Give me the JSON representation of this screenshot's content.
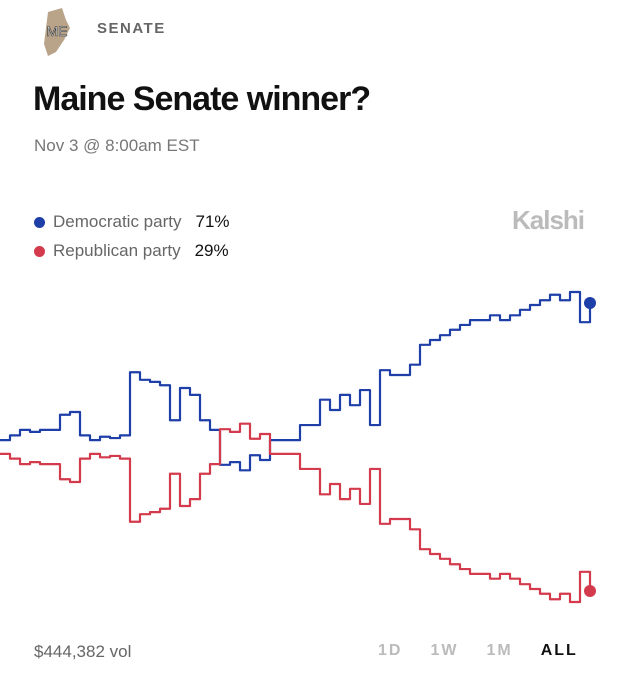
{
  "header": {
    "state_badge": "ME",
    "category": "SENATE",
    "title": "Maine Senate winner?",
    "subtitle": "Nov 3 @ 8:00am EST",
    "brand": "Kalshi"
  },
  "chart_data": {
    "type": "line",
    "ylim": [
      26,
      74
    ],
    "series": [
      {
        "name": "Democratic party",
        "color": "#1f3fa8",
        "current": {
          "value": 71,
          "label": "71%"
        },
        "values": [
          51.0,
          51.7,
          52.5,
          52.2,
          52.5,
          52.5,
          54.7,
          55.1,
          51.7,
          51.0,
          51.5,
          51.3,
          51.7,
          60.9,
          59.8,
          59.5,
          59.0,
          53.9,
          58.6,
          57.6,
          53.9,
          52.5,
          47.4,
          47.8,
          46.6,
          48.8,
          48.1,
          51.0,
          51.0,
          51.0,
          53.2,
          53.2,
          56.9,
          55.4,
          57.6,
          56.1,
          58.3,
          53.2,
          61.2,
          60.5,
          60.5,
          62.0,
          64.9,
          65.6,
          66.3,
          67.1,
          67.8,
          68.5,
          68.5,
          69.2,
          68.5,
          69.2,
          70.0,
          70.7,
          71.4,
          72.2,
          71.4,
          72.6,
          68.2,
          71
        ]
      },
      {
        "name": "Republican party",
        "color": "#d33a4c",
        "current": {
          "value": 29,
          "label": "29%"
        },
        "values": [
          49.0,
          48.3,
          47.5,
          47.8,
          47.5,
          47.5,
          45.3,
          44.9,
          48.3,
          49.0,
          48.5,
          48.7,
          48.3,
          39.1,
          40.2,
          40.5,
          41.0,
          46.1,
          41.4,
          42.4,
          46.1,
          47.5,
          52.6,
          52.2,
          53.4,
          51.2,
          51.9,
          49.0,
          49.0,
          49.0,
          46.8,
          46.8,
          43.1,
          44.6,
          42.4,
          43.9,
          41.7,
          46.8,
          38.8,
          39.5,
          39.5,
          38.0,
          35.1,
          34.4,
          33.7,
          32.9,
          32.2,
          31.5,
          31.5,
          30.8,
          31.5,
          30.8,
          30.0,
          29.3,
          28.6,
          27.8,
          28.6,
          27.4,
          31.8,
          29
        ]
      }
    ]
  },
  "footer": {
    "volume": "$444,382 vol",
    "ranges": [
      "1D",
      "1W",
      "1M",
      "ALL"
    ],
    "active_range": 3
  }
}
